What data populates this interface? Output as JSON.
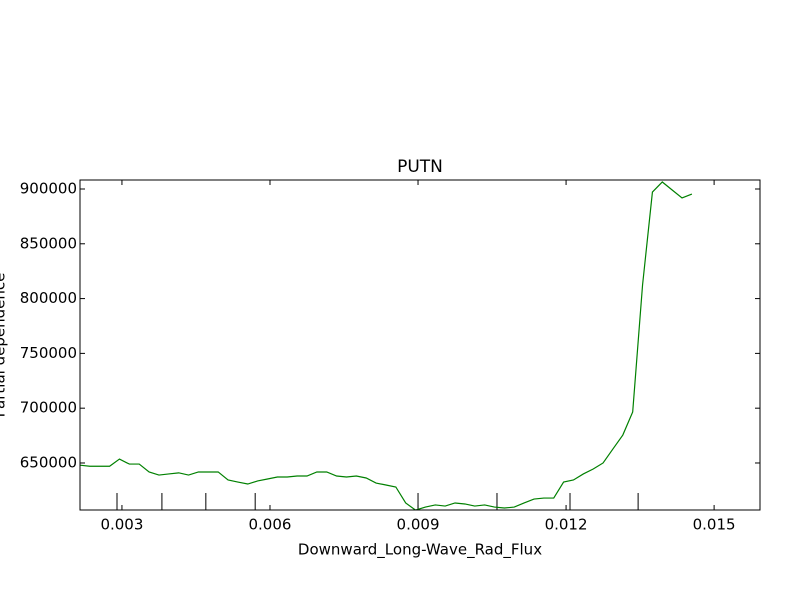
{
  "chart_data": {
    "type": "line",
    "title": "PUTN",
    "xlabel": "Downward_Long-Wave_Rad_Flux",
    "ylabel": "Partial dependence",
    "xlim": [
      0.00215,
      0.01593
    ],
    "ylim": [
      607100,
      908200
    ],
    "xticks": [
      0.003,
      0.006,
      0.009,
      0.012,
      0.015
    ],
    "yticks": [
      650000,
      700000,
      750000,
      800000,
      850000,
      900000
    ],
    "deciles": [
      0.0029,
      0.00381,
      0.0047,
      0.0057,
      0.009,
      0.0106,
      0.01208,
      0.01346
    ],
    "series": [
      {
        "color": "#008000",
        "x": [
          0.00215,
          0.00235,
          0.00255,
          0.00275,
          0.00295,
          0.00315,
          0.00335,
          0.00355,
          0.00375,
          0.00395,
          0.00415,
          0.00435,
          0.00455,
          0.00475,
          0.00495,
          0.00515,
          0.00535,
          0.00555,
          0.00575,
          0.00595,
          0.00615,
          0.00635,
          0.00655,
          0.00675,
          0.00695,
          0.00715,
          0.00735,
          0.00755,
          0.00775,
          0.00795,
          0.00815,
          0.00835,
          0.00855,
          0.00875,
          0.00895,
          0.00915,
          0.00935,
          0.00955,
          0.00975,
          0.00995,
          0.01015,
          0.01035,
          0.01055,
          0.01075,
          0.01095,
          0.01115,
          0.01135,
          0.01155,
          0.01175,
          0.01195,
          0.01215,
          0.01235,
          0.01255,
          0.01275,
          0.01295,
          0.01315,
          0.01335,
          0.01355,
          0.01375,
          0.01395,
          0.01415,
          0.01435,
          0.01455
        ],
        "values": [
          648000,
          647000,
          647000,
          647000,
          653600,
          649000,
          649000,
          641800,
          639000,
          640000,
          641000,
          639000,
          641800,
          641800,
          641800,
          634500,
          632600,
          630800,
          633600,
          635400,
          637200,
          637200,
          638100,
          638100,
          641800,
          641800,
          638100,
          637200,
          638100,
          636300,
          631700,
          629900,
          628100,
          613500,
          607000,
          609800,
          611700,
          610700,
          613500,
          612600,
          610700,
          611700,
          609800,
          608900,
          609800,
          613500,
          617100,
          618000,
          618000,
          632600,
          634500,
          640000,
          644500,
          650000,
          662800,
          675500,
          696500,
          812400,
          897200,
          906400,
          899100,
          891800,
          895400
        ]
      }
    ]
  }
}
